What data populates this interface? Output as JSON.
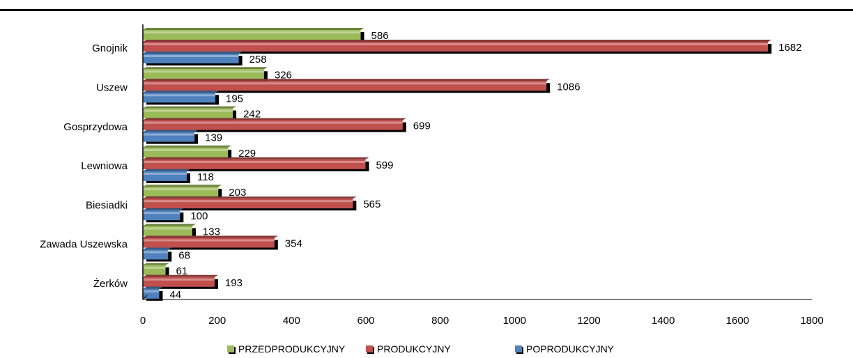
{
  "chart_data": {
    "type": "bar",
    "orientation": "horizontal",
    "categories": [
      "Gnojnik",
      "Uszew",
      "Gosprzydowa",
      "Lewniowa",
      "Biesiadki",
      "Zawada Uszewska",
      "Żerków"
    ],
    "series": [
      {
        "name": "PRZEDPRODUKCYJNY",
        "values": [
          586,
          326,
          242,
          229,
          203,
          133,
          61
        ],
        "color": "#9bbb59"
      },
      {
        "name": "PRODUKCYJNY",
        "values": [
          1682,
          1086,
          699,
          599,
          565,
          354,
          193
        ],
        "color": "#c0504d"
      },
      {
        "name": "POPRODUKCYJNY",
        "values": [
          258,
          195,
          139,
          118,
          100,
          68,
          44
        ],
        "color": "#4f81bd"
      }
    ],
    "x_ticks": [
      "0",
      "200",
      "400",
      "600",
      "800",
      "1000",
      "1200",
      "1400",
      "1600",
      "1800"
    ],
    "xlim": [
      0,
      1800
    ],
    "grid": false,
    "legend": "bottom"
  }
}
